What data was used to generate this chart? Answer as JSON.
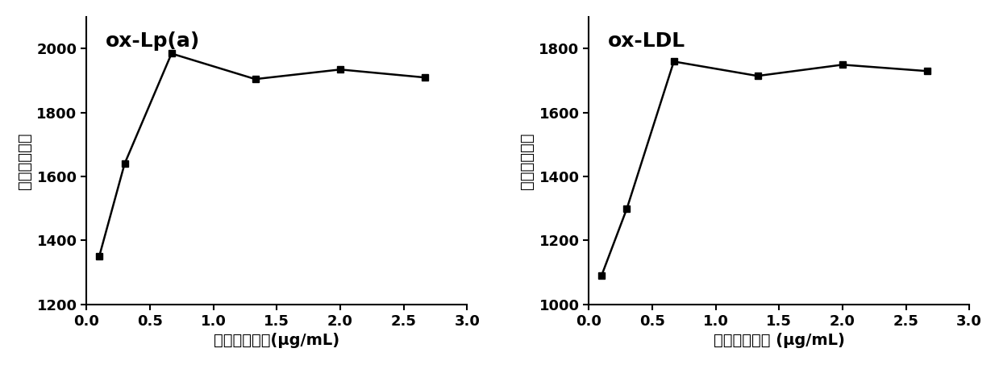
{
  "left": {
    "title": "ox-Lp(a)",
    "x": [
      0.1,
      0.3,
      0.67,
      1.33,
      2.0,
      2.67
    ],
    "y": [
      1350,
      1640,
      1985,
      1905,
      1935,
      1910
    ],
    "ylabel": "化学发光强度",
    "xlabel": "包被抗体浓度(μg/mL)",
    "ylim": [
      1200,
      2100
    ],
    "yticks": [
      1200,
      1400,
      1600,
      1800,
      2000
    ],
    "xlim": [
      0,
      3.0
    ],
    "xticks": [
      0.0,
      0.5,
      1.0,
      1.5,
      2.0,
      2.5,
      3.0
    ]
  },
  "right": {
    "title": "ox-LDL",
    "x": [
      0.1,
      0.3,
      0.67,
      1.33,
      2.0,
      2.67
    ],
    "y": [
      1090,
      1300,
      1760,
      1715,
      1750,
      1730
    ],
    "ylabel": "化学发光强度",
    "xlabel": "包被抗体浓度 (μg/mL)",
    "ylim": [
      1000,
      1900
    ],
    "yticks": [
      1000,
      1200,
      1400,
      1600,
      1800
    ],
    "xlim": [
      0,
      3.0
    ],
    "xticks": [
      0.0,
      0.5,
      1.0,
      1.5,
      2.0,
      2.5,
      3.0
    ]
  },
  "line_color": "#000000",
  "marker": "s",
  "marker_size": 6,
  "line_width": 1.8,
  "title_fontsize": 18,
  "label_fontsize": 14,
  "tick_fontsize": 13,
  "background_color": "#ffffff"
}
